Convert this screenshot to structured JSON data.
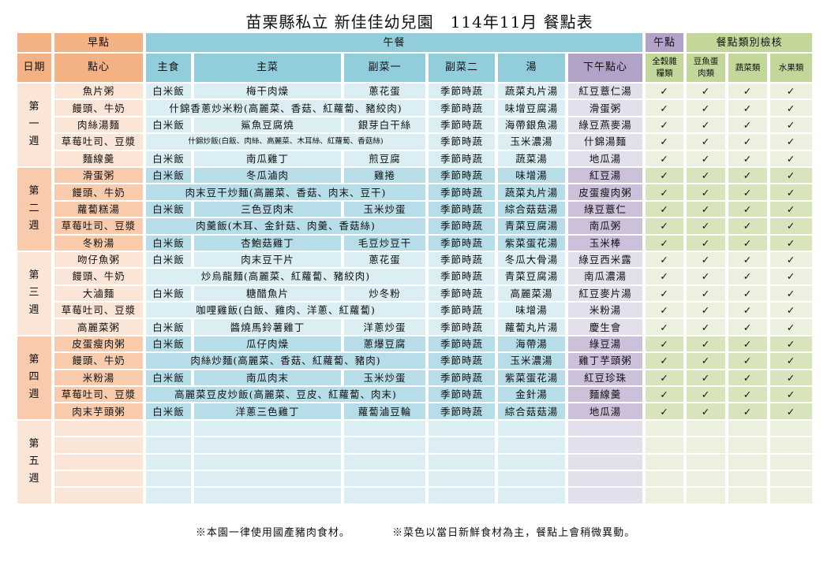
{
  "title": "苗栗縣私立 新佳佳幼兒園　114年11月 餐點表",
  "header": {
    "groups": {
      "breakfast": "早點",
      "lunch": "午餐",
      "snack": "午點",
      "check": "餐點類別檢核"
    },
    "columns": {
      "date": "日期",
      "breakfast": "點心",
      "staple": "主食",
      "main": "主菜",
      "side1": "副菜一",
      "side2": "副菜二",
      "soup": "湯",
      "snack": "下午點心",
      "grain": "全穀雜糧類",
      "protein": "豆魚蛋肉類",
      "veg": "蔬菜類",
      "fruit": "水果類"
    }
  },
  "check_mark": "✓",
  "colors": {
    "breakfast": "#f4b183",
    "lunch": "#92cddc",
    "snack": "#b3a2c7",
    "check": "#c4d79b"
  },
  "weeks": [
    {
      "label": "第一週",
      "rows": [
        {
          "breakfast": "魚片粥",
          "staple": "白米飯",
          "main": "梅干肉燥",
          "side1": "蔥花蛋",
          "side2": "季節時蔬",
          "soup": "蔬菜丸片湯",
          "snack": "紅豆薏仁湯",
          "checks": [
            true,
            true,
            true,
            true
          ]
        },
        {
          "breakfast": "饅頭、牛奶",
          "combined": "什錦香蔥炒米粉(高麗菜、香菇、紅蘿蔔、豬絞肉)",
          "side2": "季節時蔬",
          "soup": "味增豆腐湯",
          "snack": "滑蛋粥",
          "checks": [
            true,
            true,
            true,
            true
          ]
        },
        {
          "breakfast": "肉絲湯麵",
          "staple": "白米飯",
          "main": "鯊魚豆腐燒",
          "side1": "銀芽白干絲",
          "side2": "季節時蔬",
          "soup": "海帶銀魚湯",
          "snack": "綠豆燕麥湯",
          "checks": [
            true,
            true,
            true,
            true
          ]
        },
        {
          "breakfast": "草莓吐司、豆漿",
          "combined": "什錦炒飯(白飯、肉絲、高麗菜、木耳絲、紅蘿蔔、香菇絲)",
          "tiny": true,
          "side2": "季節時蔬",
          "soup": "玉米濃湯",
          "snack": "什錦湯麵",
          "checks": [
            true,
            true,
            true,
            true
          ]
        },
        {
          "breakfast": "麵線羹",
          "staple": "白米飯",
          "main": "南瓜雞丁",
          "side1": "煎豆腐",
          "side2": "季節時蔬",
          "soup": "蔬菜湯",
          "snack": "地瓜湯",
          "checks": [
            true,
            true,
            true,
            true
          ]
        }
      ]
    },
    {
      "label": "第二週",
      "rows": [
        {
          "breakfast": "滑蛋粥",
          "staple": "白米飯",
          "main": "冬瓜滷肉",
          "side1": "雞捲",
          "side2": "季節時蔬",
          "soup": "味增湯",
          "snack": "紅豆湯",
          "checks": [
            true,
            true,
            true,
            true
          ]
        },
        {
          "breakfast": "饅頭、牛奶",
          "combined": "肉末豆干炒麵(高麗菜、香菇、肉末、豆干)",
          "side2": "季節時蔬",
          "soup": "蔬菜丸片湯",
          "snack": "皮蛋瘦肉粥",
          "checks": [
            true,
            true,
            true,
            true
          ]
        },
        {
          "breakfast": "蘿蔔糕湯",
          "staple": "白米飯",
          "main": "三色豆肉末",
          "side1": "玉米炒蛋",
          "side2": "季節時蔬",
          "soup": "綜合菇菇湯",
          "snack": "綠豆薏仁",
          "checks": [
            true,
            true,
            true,
            true
          ]
        },
        {
          "breakfast": "草莓吐司、豆漿",
          "combined": "肉羹飯(木耳、金針菇、肉羹、香菇絲)",
          "side2": "季節時蔬",
          "soup": "青菜豆腐湯",
          "snack": "南瓜粥",
          "checks": [
            true,
            true,
            true,
            true
          ]
        },
        {
          "breakfast": "冬粉湯",
          "staple": "白米飯",
          "main": "杏鮑菇雞丁",
          "side1": "毛豆炒豆干",
          "side2": "季節時蔬",
          "soup": "紫菜蛋花湯",
          "snack": "玉米棒",
          "checks": [
            true,
            true,
            true,
            true
          ]
        }
      ]
    },
    {
      "label": "第三週",
      "rows": [
        {
          "breakfast": "吻仔魚粥",
          "staple": "白米飯",
          "main": "肉末豆干片",
          "side1": "蔥花蛋",
          "side2": "季節時蔬",
          "soup": "冬瓜大骨湯",
          "snack": "綠豆西米露",
          "checks": [
            true,
            true,
            true,
            true
          ]
        },
        {
          "breakfast": "饅頭、牛奶",
          "combined": "炒烏龍麵(高麗菜、紅蘿蔔、豬絞肉)",
          "side2": "季節時蔬",
          "soup": "青菜豆腐湯",
          "snack": "南瓜濃湯",
          "checks": [
            true,
            true,
            true,
            true
          ]
        },
        {
          "breakfast": "大滷麵",
          "staple": "白米飯",
          "main": "糖醋魚片",
          "side1": "炒冬粉",
          "side2": "季節時蔬",
          "soup": "高麗菜湯",
          "snack": "紅豆麥片湯",
          "checks": [
            true,
            true,
            true,
            true
          ]
        },
        {
          "breakfast": "草莓吐司、豆漿",
          "combined": "咖哩雞飯(白飯、雞肉、洋蔥、紅蘿蔔)",
          "side2": "季節時蔬",
          "soup": "味增湯",
          "snack": "米粉湯",
          "checks": [
            true,
            true,
            true,
            true
          ]
        },
        {
          "breakfast": "高麗菜粥",
          "staple": "白米飯",
          "main": "醬燒馬鈴薯雞丁",
          "side1": "洋蔥炒蛋",
          "side2": "季節時蔬",
          "soup": "蘿蔔丸片湯",
          "snack": "慶生會",
          "checks": [
            true,
            true,
            true,
            true
          ]
        }
      ]
    },
    {
      "label": "第四週",
      "rows": [
        {
          "breakfast": "皮蛋瘦肉粥",
          "staple": "白米飯",
          "main": "瓜仔肉燥",
          "side1": "蔥爆豆腐",
          "side2": "季節時蔬",
          "soup": "海帶湯",
          "snack": "綠豆湯",
          "checks": [
            true,
            true,
            true,
            true
          ]
        },
        {
          "breakfast": "饅頭、牛奶",
          "combined": "肉絲炒麵(高麗菜、香菇、紅蘿蔔、豬肉)",
          "side2": "季節時蔬",
          "soup": "玉米濃湯",
          "snack": "雞丁芋頭粥",
          "checks": [
            true,
            true,
            true,
            true
          ]
        },
        {
          "breakfast": "米粉湯",
          "staple": "白米飯",
          "main": "南瓜肉末",
          "side1": "玉米炒蛋",
          "side2": "季節時蔬",
          "soup": "紫菜蛋花湯",
          "snack": "紅豆珍珠",
          "checks": [
            true,
            true,
            true,
            true
          ]
        },
        {
          "breakfast": "草莓吐司、豆漿",
          "combined": "高麗菜豆皮炒飯(高麗菜、豆皮、紅蘿蔔、肉末)",
          "side2": "季節時蔬",
          "soup": "金針湯",
          "snack": "麵線羹",
          "checks": [
            true,
            true,
            true,
            true
          ]
        },
        {
          "breakfast": "肉末芋頭粥",
          "staple": "白米飯",
          "main": "洋蔥三色雞丁",
          "side1": "蘿蔔滷豆輪",
          "side2": "季節時蔬",
          "soup": "綜合菇菇湯",
          "snack": "地瓜湯",
          "checks": [
            true,
            true,
            true,
            true
          ]
        }
      ]
    },
    {
      "label": "第五週",
      "rows": [
        {},
        {},
        {},
        {},
        {}
      ]
    }
  ],
  "footer": {
    "note1": "※本園一律使用國產豬肉食材。",
    "note2": "※菜色以當日新鮮食材為主，餐點上會稍微異動。"
  }
}
